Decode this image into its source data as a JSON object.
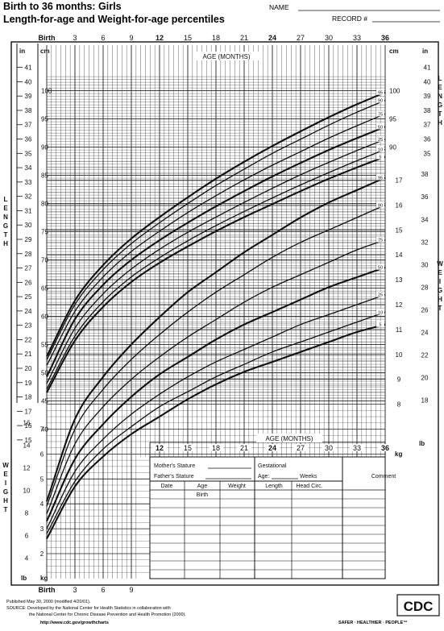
{
  "header": {
    "title_line1": "Birth to 36 months: Girls",
    "title_line2": "Length-for-age and Weight-for-age percentiles",
    "name_label": "NAME",
    "record_label": "RECORD #"
  },
  "footer": {
    "published": "Published May 30, 2000 (modified 4/20/01).",
    "source_1": "SOURCE: Developed by the National Center for Health Statistics in collaboration with",
    "source_2": "the National Center for Chronic Disease Prevention and Health Promotion (2000).",
    "url": "http://www.cdc.gov/growthcharts",
    "logo_text": "CDC",
    "tagline": "SAFER · HEALTHIER · PEOPLE™"
  },
  "record_table": {
    "mothers_stature": "Mother's Stature",
    "fathers_stature": "Father's Stature",
    "gestational": "Gestational",
    "age": "Age:",
    "weeks": "Weeks",
    "comment": "Comment",
    "col_date": "Date",
    "col_age": "Age",
    "col_weight": "Weight",
    "col_length": "Length",
    "col_head_circ": "Head Circ.",
    "birth_row": "Birth"
  },
  "chart_data": [
    {
      "type": "line",
      "title": "Length-for-age percentiles",
      "xlabel": "AGE (MONTHS)",
      "ylabel": "LENGTH",
      "x_label_top_left": "Birth",
      "x": [
        0,
        3,
        6,
        9,
        12,
        15,
        18,
        21,
        24,
        27,
        30,
        33,
        36
      ],
      "xlim": [
        0,
        36
      ],
      "ylim_cm": [
        37,
        103
      ],
      "y_ticks_cm": [
        40,
        45,
        50,
        55,
        60,
        65,
        70,
        75,
        80,
        85,
        90,
        95,
        100
      ],
      "y_ticks_in": [
        15,
        16,
        17,
        18,
        19,
        20,
        21,
        22,
        23,
        24,
        25,
        26,
        27,
        28,
        29,
        30,
        31,
        32,
        33,
        34,
        35,
        36,
        37,
        38,
        39,
        40,
        41
      ],
      "right_ticks_cm": [
        90,
        95,
        100
      ],
      "right_ticks_in": [
        35,
        36,
        37,
        38,
        39,
        40,
        41
      ],
      "unit_left_in": "in",
      "unit_left_cm": "cm",
      "series": [
        {
          "name": "95",
          "values": [
            52.9,
            62.8,
            69.1,
            73.8,
            77.6,
            81.1,
            84.4,
            87.4,
            90.2,
            92.8,
            95.3,
            97.6,
            99.7
          ]
        },
        {
          "name": "90",
          "values": [
            52.3,
            62.1,
            68.3,
            72.9,
            76.6,
            80.0,
            83.2,
            86.1,
            88.9,
            91.4,
            93.9,
            96.2,
            98.3
          ]
        },
        {
          "name": "75",
          "values": [
            51.3,
            60.9,
            67.0,
            71.5,
            75.1,
            78.4,
            81.4,
            84.2,
            86.8,
            89.2,
            91.6,
            93.8,
            95.9
          ]
        },
        {
          "name": "50",
          "values": [
            49.3,
            59.5,
            65.6,
            70.0,
            73.5,
            76.6,
            79.5,
            82.2,
            84.8,
            87.2,
            89.5,
            91.6,
            93.6
          ]
        },
        {
          "name": "25",
          "values": [
            48.1,
            57.9,
            64.0,
            68.4,
            71.9,
            74.9,
            77.6,
            80.2,
            82.7,
            85.1,
            87.3,
            89.4,
            91.4
          ]
        },
        {
          "name": "10",
          "values": [
            47.1,
            56.5,
            62.6,
            67.0,
            70.4,
            73.4,
            76.1,
            78.6,
            81.0,
            83.3,
            85.5,
            87.6,
            89.6
          ]
        },
        {
          "name": "5",
          "values": [
            46.5,
            55.7,
            61.7,
            66.1,
            69.5,
            72.4,
            75.1,
            77.6,
            79.9,
            82.2,
            84.4,
            86.4,
            88.3
          ]
        }
      ]
    },
    {
      "type": "line",
      "title": "Weight-for-age percentiles",
      "xlabel": "AGE (MONTHS)",
      "x_label_bottom_left": "Birth",
      "ylabel": "WEIGHT",
      "x": [
        0,
        3,
        6,
        9,
        12,
        15,
        18,
        21,
        24,
        27,
        30,
        33,
        36
      ],
      "xlim": [
        0,
        36
      ],
      "ylim_kg": [
        1.2,
        18
      ],
      "y_ticks_kg_left": [
        2,
        3,
        4,
        5,
        6,
        7
      ],
      "y_ticks_kg_right": [
        8,
        9,
        10,
        11,
        12,
        13,
        14,
        15,
        16,
        17
      ],
      "y_ticks_lb_left": [
        4,
        6,
        8,
        10,
        12,
        14,
        16
      ],
      "y_ticks_lb_right": [
        18,
        20,
        22,
        24,
        26,
        28,
        30,
        32,
        34,
        36,
        38
      ],
      "unit_kg": "kg",
      "unit_lb": "lb",
      "series": [
        {
          "name": "95",
          "values": [
            4.1,
            7.4,
            9.1,
            10.4,
            11.5,
            12.5,
            13.3,
            14.1,
            14.8,
            15.5,
            16.1,
            16.6,
            17.1
          ]
        },
        {
          "name": "90",
          "values": [
            3.9,
            7.0,
            8.6,
            9.8,
            10.8,
            11.7,
            12.5,
            13.2,
            13.9,
            14.5,
            15.0,
            15.5,
            16.0
          ]
        },
        {
          "name": "75",
          "values": [
            3.6,
            6.4,
            7.9,
            9.0,
            9.9,
            10.7,
            11.4,
            12.1,
            12.7,
            13.2,
            13.7,
            14.2,
            14.6
          ]
        },
        {
          "name": "50",
          "values": [
            3.3,
            5.8,
            7.2,
            8.3,
            9.2,
            9.9,
            10.6,
            11.2,
            11.7,
            12.2,
            12.7,
            13.1,
            13.5
          ]
        },
        {
          "name": "25",
          "values": [
            3.0,
            5.3,
            6.6,
            7.6,
            8.4,
            9.1,
            9.7,
            10.2,
            10.7,
            11.2,
            11.6,
            12.0,
            12.4
          ]
        },
        {
          "name": "10",
          "values": [
            2.8,
            4.9,
            6.2,
            7.1,
            7.9,
            8.5,
            9.1,
            9.6,
            10.1,
            10.5,
            10.9,
            11.3,
            11.7
          ]
        },
        {
          "name": "5",
          "values": [
            2.6,
            4.7,
            5.9,
            6.8,
            7.5,
            8.2,
            8.8,
            9.3,
            9.7,
            10.1,
            10.5,
            10.9,
            11.2
          ]
        }
      ]
    }
  ]
}
